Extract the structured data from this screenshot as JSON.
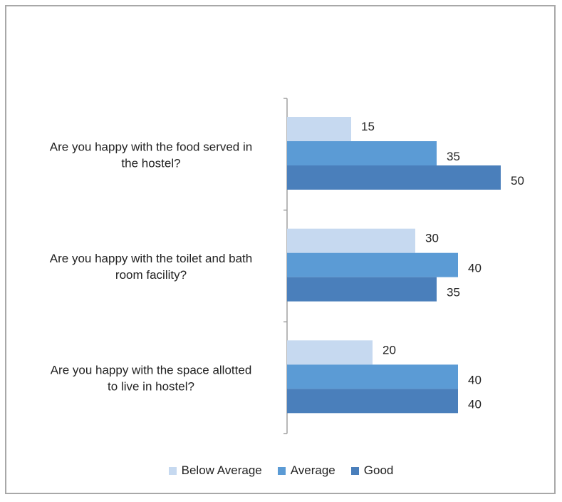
{
  "chart_data": {
    "type": "bar",
    "orientation": "horizontal",
    "categories": [
      [
        "Are you happy with the  food served in",
        "the hostel?"
      ],
      [
        "Are you happy with the  toilet and bath",
        "room facility?"
      ],
      [
        "Are you happy with the  space allotted",
        "to live in hostel?"
      ]
    ],
    "series": [
      {
        "name": "Below Average",
        "color": "#c6d9f0",
        "values": [
          15,
          30,
          20
        ]
      },
      {
        "name": "Average",
        "color": "#5b9bd5",
        "values": [
          35,
          40,
          40
        ]
      },
      {
        "name": "Good",
        "color": "#4a7fbb",
        "values": [
          50,
          35,
          40
        ]
      }
    ],
    "xlim": [
      0,
      50
    ],
    "grid": false,
    "legend_position": "bottom"
  }
}
